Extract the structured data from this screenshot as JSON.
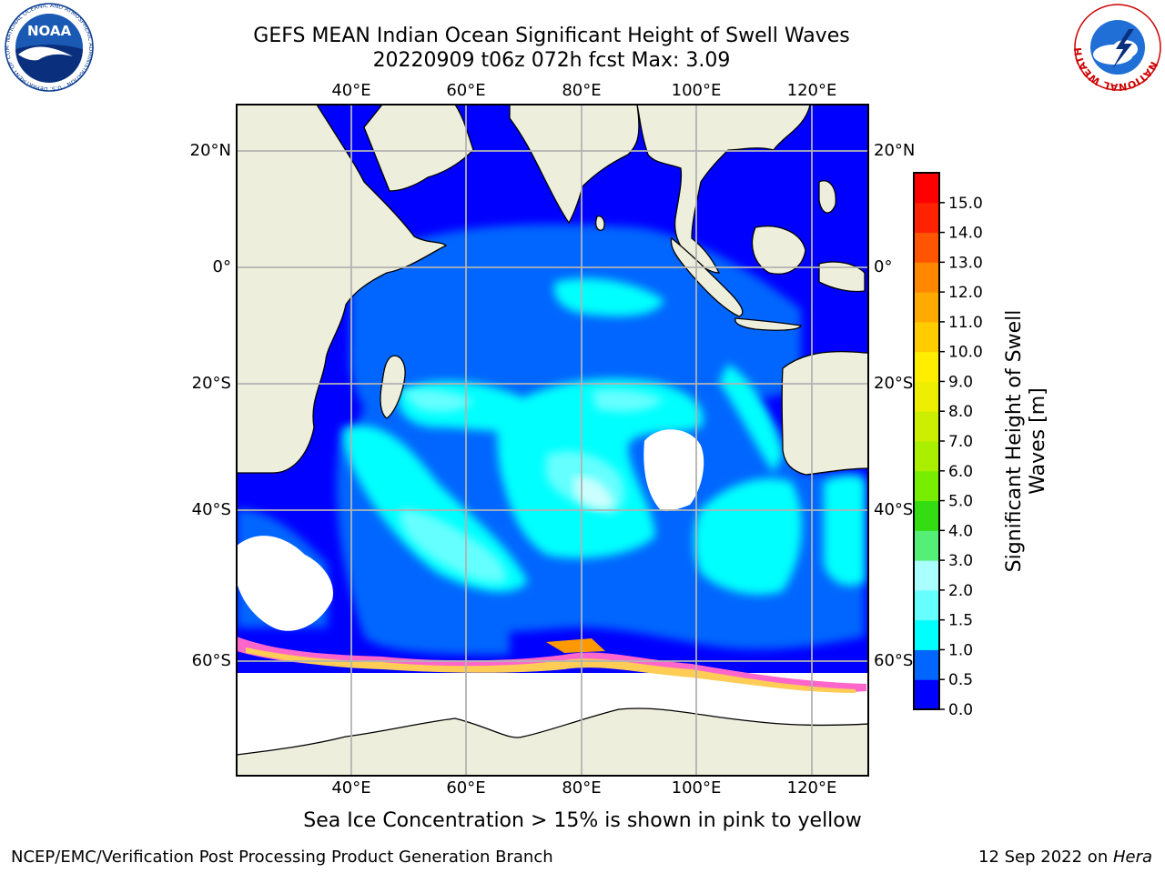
{
  "title": {
    "line1": "GEFS MEAN Indian Ocean Significant Height of Swell Waves",
    "line2": "20220909 t06z 072h fcst   Max: 3.09"
  },
  "map": {
    "lon_labels_top": [
      "40°E",
      "60°E",
      "80°E",
      "100°E",
      "120°E"
    ],
    "lon_labels_bottom": [
      "40°E",
      "60°E",
      "80°E",
      "100°E",
      "120°E"
    ],
    "lat_labels_left": [
      "20°N",
      "0°",
      "20°S",
      "40°S",
      "60°S"
    ],
    "lat_labels_right": [
      "20°N",
      "0°",
      "20°S",
      "40°S",
      "60°S"
    ],
    "extent": {
      "lon_min": 20,
      "lon_max": 130,
      "lat_min": -75,
      "lat_max": 28
    }
  },
  "colorbar": {
    "label": "Significant Height of Swell Waves [m]",
    "ticks": [
      "0.0",
      "0.5",
      "1.0",
      "1.5",
      "2.0",
      "3.0",
      "4.0",
      "5.0",
      "6.0",
      "7.0",
      "8.0",
      "9.0",
      "10.0",
      "11.0",
      "12.0",
      "13.0",
      "14.0",
      "15.0"
    ],
    "colors": [
      "#0000ff",
      "#0066ff",
      "#00ffff",
      "#66ffff",
      "#aaffff",
      "#55ee77",
      "#33dd11",
      "#77ee00",
      "#aaee00",
      "#ccee00",
      "#eeee00",
      "#ffee00",
      "#ffcc00",
      "#ffaa00",
      "#ff8800",
      "#ff5500",
      "#ff2200",
      "#ff0000"
    ]
  },
  "caption": "Sea Ice Concentration > 15% is shown in pink to yellow",
  "footer": {
    "left": "NCEP/EMC/Verification Post Processing Product Generation Branch",
    "right_date": "12 Sep 2022 on ",
    "right_machine": "Hera"
  },
  "logos": {
    "noaa_text": "NOAA",
    "noaa_ring": "NATIONAL OCEANIC AND ATMOSPHERIC ADMINISTRATION · U.S. DEPARTMENT OF COMMERCE",
    "nws_ring": "NATIONAL WEATHER SERVICE"
  }
}
